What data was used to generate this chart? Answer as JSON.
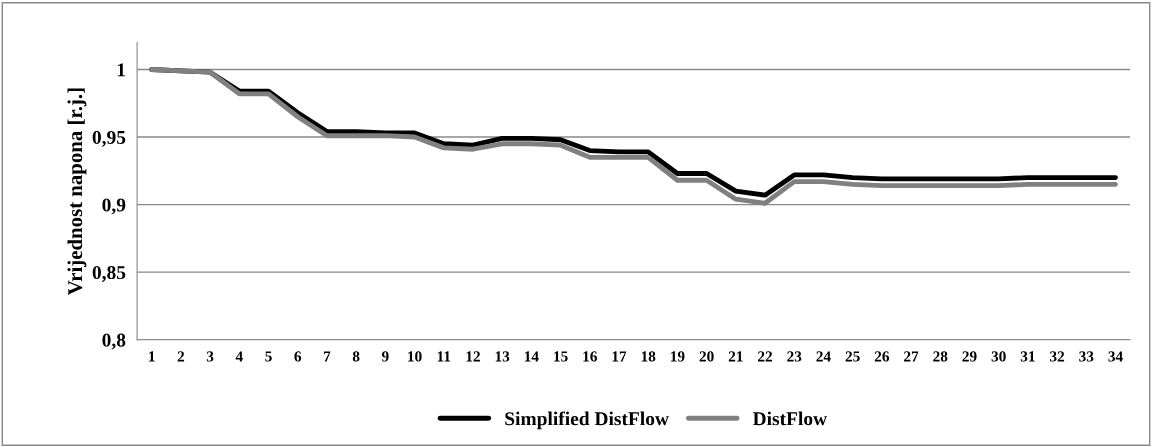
{
  "chart_data": {
    "type": "line",
    "ylabel": "Vrijednost napona [r.j.]",
    "categories": [
      "1",
      "2",
      "3",
      "4",
      "5",
      "6",
      "7",
      "8",
      "9",
      "10",
      "11",
      "12",
      "13",
      "14",
      "15",
      "16",
      "17",
      "18",
      "19",
      "20",
      "21",
      "22",
      "23",
      "24",
      "25",
      "26",
      "27",
      "28",
      "29",
      "30",
      "31",
      "32",
      "33",
      "34"
    ],
    "series": [
      {
        "name": "Simplified DistFlow",
        "color": "#000000",
        "values": [
          1,
          0.999,
          0.998,
          0.984,
          0.984,
          0.968,
          0.954,
          0.954,
          0.953,
          0.953,
          0.945,
          0.944,
          0.949,
          0.949,
          0.948,
          0.94,
          0.939,
          0.939,
          0.923,
          0.923,
          0.91,
          0.907,
          0.922,
          0.922,
          0.92,
          0.919,
          0.919,
          0.919,
          0.919,
          0.919,
          0.92,
          0.92,
          0.92,
          0.92
        ]
      },
      {
        "name": "DistFlow",
        "color": "#808080",
        "values": [
          1,
          0.999,
          0.998,
          0.982,
          0.982,
          0.965,
          0.951,
          0.951,
          0.951,
          0.95,
          0.942,
          0.941,
          0.945,
          0.945,
          0.944,
          0.935,
          0.935,
          0.935,
          0.918,
          0.918,
          0.904,
          0.901,
          0.917,
          0.917,
          0.915,
          0.914,
          0.914,
          0.914,
          0.914,
          0.914,
          0.915,
          0.915,
          0.915,
          0.915
        ]
      }
    ],
    "ylim": [
      0.8,
      1.02
    ],
    "yticks": [
      {
        "value": 0.8,
        "label": "0,8"
      },
      {
        "value": 0.85,
        "label": "0,85"
      },
      {
        "value": 0.9,
        "label": "0,9"
      },
      {
        "value": 0.95,
        "label": "0,95"
      },
      {
        "value": 1,
        "label": "1"
      }
    ],
    "grid": "y",
    "legend": "bottom",
    "marker": "none",
    "line_style": "solid"
  }
}
